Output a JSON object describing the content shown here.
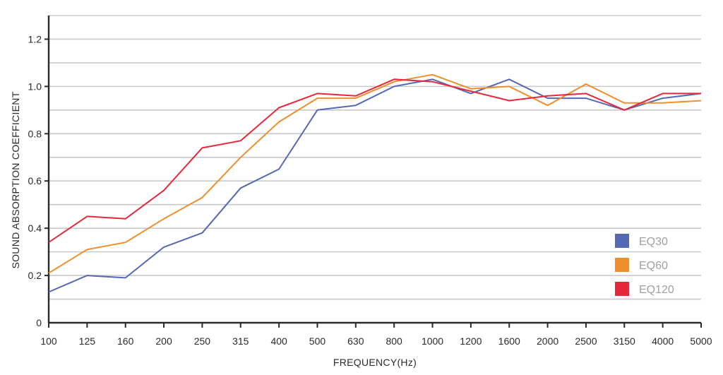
{
  "chart_data": {
    "type": "line",
    "xlabel": "FREQUENCY(Hz)",
    "ylabel": "SOUND ABSORPTION COEFFICIENT",
    "ylim": [
      0,
      1.3
    ],
    "yticks": [
      0,
      0.2,
      0.4,
      0.6,
      0.8,
      1.0,
      1.2
    ],
    "ytick_labels": [
      "0",
      "0.2",
      "0.4",
      "0.6",
      "0.8",
      "1.0",
      "1.2"
    ],
    "grid": true,
    "legend_position": "bottom-right",
    "categories": [
      "100",
      "125",
      "160",
      "200",
      "250",
      "315",
      "400",
      "500",
      "630",
      "800",
      "1000",
      "1200",
      "1600",
      "2000",
      "2500",
      "3150",
      "4000",
      "5000"
    ],
    "series": [
      {
        "name": "EQ30",
        "color": "#5468b4",
        "values": [
          0.13,
          0.2,
          0.19,
          0.32,
          0.38,
          0.57,
          0.65,
          0.9,
          0.92,
          1.0,
          1.03,
          0.97,
          1.03,
          0.95,
          0.95,
          0.9,
          0.95,
          0.97
        ]
      },
      {
        "name": "EQ60",
        "color": "#ee8e2c",
        "values": [
          0.21,
          0.31,
          0.34,
          0.44,
          0.53,
          0.7,
          0.85,
          0.95,
          0.95,
          1.02,
          1.05,
          0.99,
          1.0,
          0.92,
          1.01,
          0.93,
          0.93,
          0.94
        ]
      },
      {
        "name": "EQ120",
        "color": "#e5283a",
        "values": [
          0.34,
          0.45,
          0.44,
          0.56,
          0.74,
          0.77,
          0.91,
          0.97,
          0.96,
          1.03,
          1.02,
          0.98,
          0.94,
          0.96,
          0.97,
          0.9,
          0.97,
          0.97
        ]
      }
    ]
  }
}
